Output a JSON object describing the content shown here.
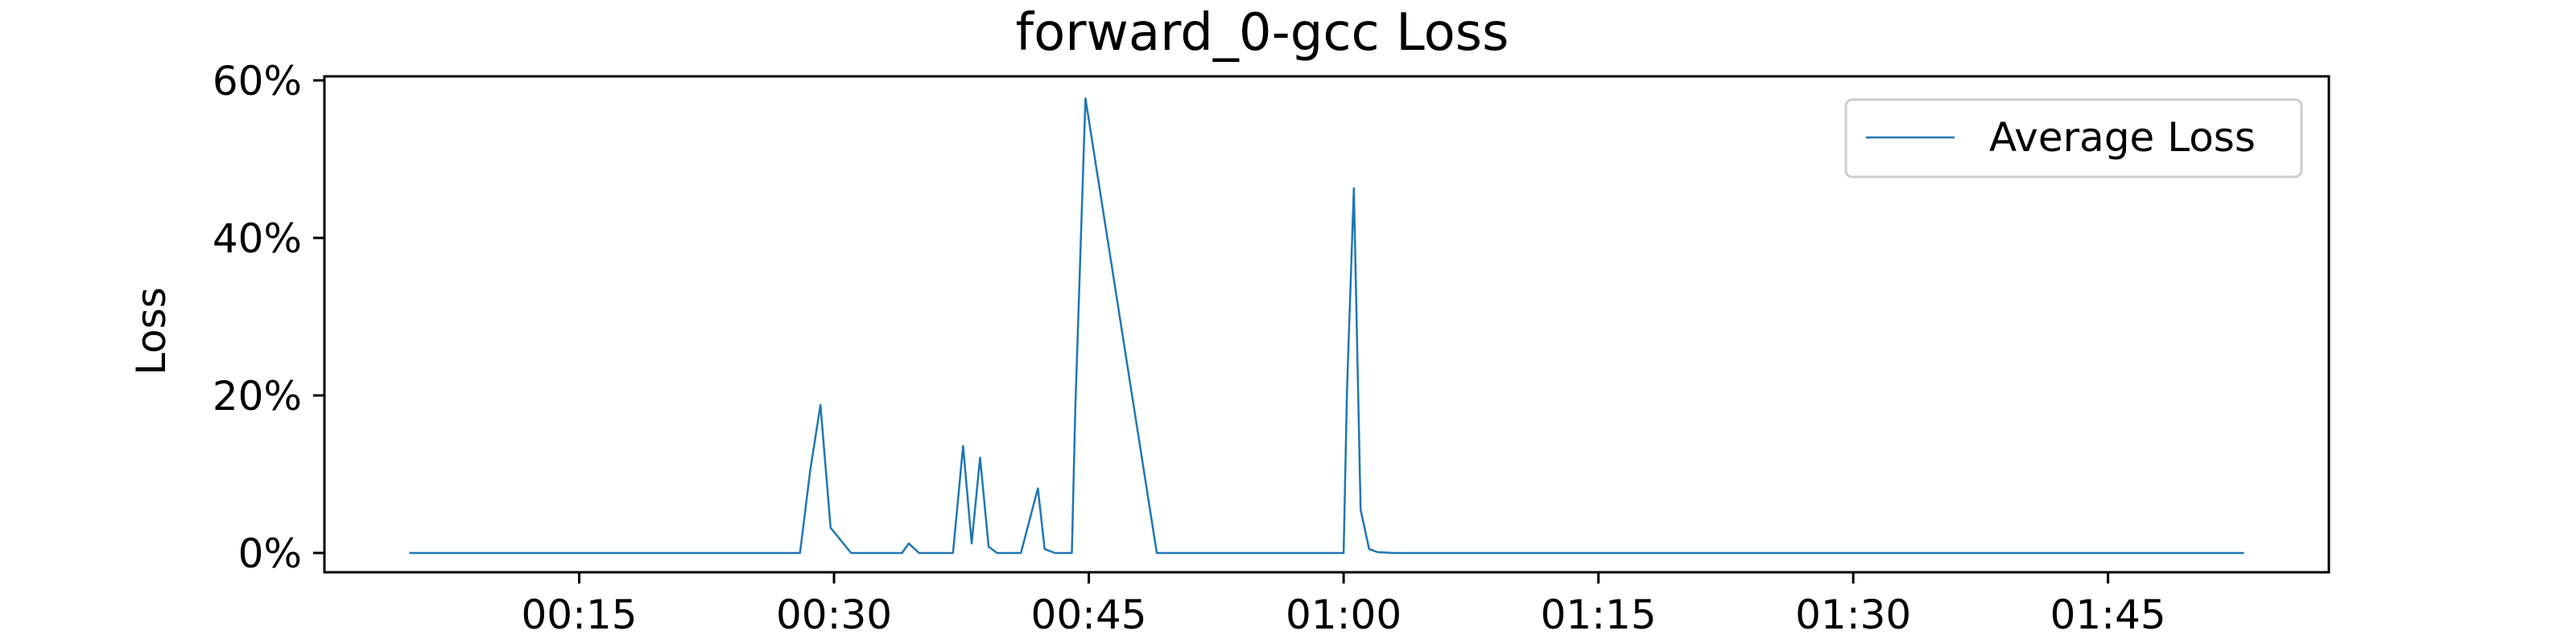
{
  "chart_data": {
    "type": "line",
    "title": "forward_0-gcc Loss",
    "xlabel": "",
    "ylabel": "Loss",
    "x_unit": "time (mm:ss)",
    "xlim": [
      "00:00",
      "01:58"
    ],
    "ylim": [
      0,
      60
    ],
    "x_ticks": [
      "00:15",
      "00:30",
      "00:45",
      "01:00",
      "01:15",
      "01:30",
      "01:45"
    ],
    "y_ticks": [
      "0%",
      "20%",
      "40%",
      "60%"
    ],
    "grid": false,
    "legend_position": "top-right",
    "series": [
      {
        "name": "Average Loss",
        "color": "#1f77b4",
        "x": [
          "00:05",
          "00:28",
          "00:28.6",
          "00:29.2",
          "00:29.8",
          "00:31",
          "00:34",
          "00:34.4",
          "00:35",
          "00:37",
          "00:37.6",
          "00:38.1",
          "00:38.6",
          "00:39.1",
          "00:39.6",
          "00:41",
          "00:42",
          "00:42.4",
          "00:43",
          "00:44",
          "00:44.2",
          "00:44.8",
          "00:49",
          "01:00",
          "01:00.2",
          "01:00.6",
          "01:01",
          "01:01.5",
          "01:02",
          "01:03",
          "01:07",
          "01:53"
        ],
        "values": [
          0,
          0,
          10.5,
          18.8,
          3.2,
          0,
          0,
          1.2,
          0,
          0,
          13.6,
          1.2,
          12.1,
          0.8,
          0,
          0,
          8.2,
          0.5,
          0,
          0,
          18,
          57.7,
          0,
          0,
          20.7,
          46.3,
          5.5,
          0.5,
          0.1,
          0,
          0,
          0
        ]
      }
    ]
  }
}
